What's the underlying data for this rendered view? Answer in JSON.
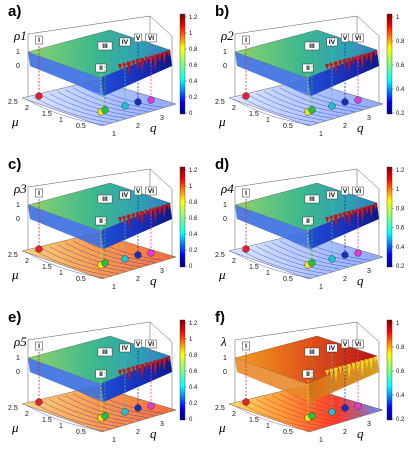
{
  "figure": {
    "panels": [
      {
        "letter": "a)",
        "zlabel": "ρ1",
        "kind": "rho",
        "ztick_top": "1",
        "ztick_bottom": "0",
        "cbar_ticks": [
          "1.2",
          "1",
          "0.8",
          "0.6",
          "0.4",
          "0.2",
          "0"
        ]
      },
      {
        "letter": "b)",
        "zlabel": "ρ2",
        "kind": "rho",
        "ztick_top": "1",
        "ztick_bottom": "0",
        "cbar_ticks": [
          "1",
          "0.8",
          "0.6",
          "0.4",
          "0.2"
        ]
      },
      {
        "letter": "c)",
        "zlabel": "ρ3",
        "kind": "rho",
        "ztick_top": "1",
        "ztick_bottom": "0",
        "cbar_ticks": [
          "1.2",
          "1",
          "0.8",
          "0.6",
          "0.4",
          "0.2",
          "0"
        ]
      },
      {
        "letter": "d)",
        "zlabel": "ρ4",
        "kind": "rho",
        "ztick_top": "1",
        "ztick_bottom": "0",
        "cbar_ticks": [
          "1.2",
          "1",
          "0.8",
          "0.6",
          "0.4",
          "0.2"
        ]
      },
      {
        "letter": "e)",
        "zlabel": "ρ5",
        "kind": "rho",
        "ztick_top": "1",
        "ztick_bottom": "0",
        "cbar_ticks": [
          "1.2",
          "1",
          "0.8",
          "0.6",
          "0.4",
          "0.2",
          "0"
        ]
      },
      {
        "letter": "f)",
        "zlabel": "λ",
        "kind": "lambda",
        "ztick_top": "1",
        "ztick_bottom": "0",
        "cbar_ticks": [
          "1",
          "0.8",
          "0.6",
          "0.4",
          "0.2"
        ]
      }
    ],
    "x_axis": {
      "label": "μ",
      "ticks": [
        "2.5",
        "2",
        "1.5",
        "1",
        "0.5"
      ]
    },
    "y_axis": {
      "label": "q",
      "ticks": [
        "1",
        "2",
        "3"
      ]
    },
    "regions": [
      "I",
      "II",
      "III",
      "IV",
      "V",
      "VI"
    ],
    "marker_colors": [
      "#e8202a",
      "#f3e21a",
      "#22c23a",
      "#1ec2d6",
      "#1a2fb8",
      "#e03ad8"
    ],
    "colormap": "jet"
  },
  "chart_data": {
    "type": "surface",
    "panel_count": 6,
    "x_label": "μ",
    "y_label": "q",
    "x_ticks": [
      2.5,
      2,
      1.5,
      1,
      0.5
    ],
    "y_ticks": [
      1,
      2,
      3
    ],
    "z_range": [
      0,
      1
    ],
    "z_ticks": [
      0,
      1
    ],
    "series": [
      {
        "name": "ρ1",
        "colorbar_range": [
          0,
          1.2
        ]
      },
      {
        "name": "ρ2",
        "colorbar_range": [
          0.1,
          1.05
        ]
      },
      {
        "name": "ρ3",
        "colorbar_range": [
          0,
          1.2
        ]
      },
      {
        "name": "ρ4",
        "colorbar_range": [
          0.1,
          1.25
        ]
      },
      {
        "name": "ρ5",
        "colorbar_range": [
          0,
          1.2
        ]
      },
      {
        "name": "λ",
        "colorbar_range": [
          0.1,
          1.05
        ]
      }
    ],
    "region_labels": [
      "I",
      "II",
      "III",
      "IV",
      "V",
      "VI"
    ]
  }
}
